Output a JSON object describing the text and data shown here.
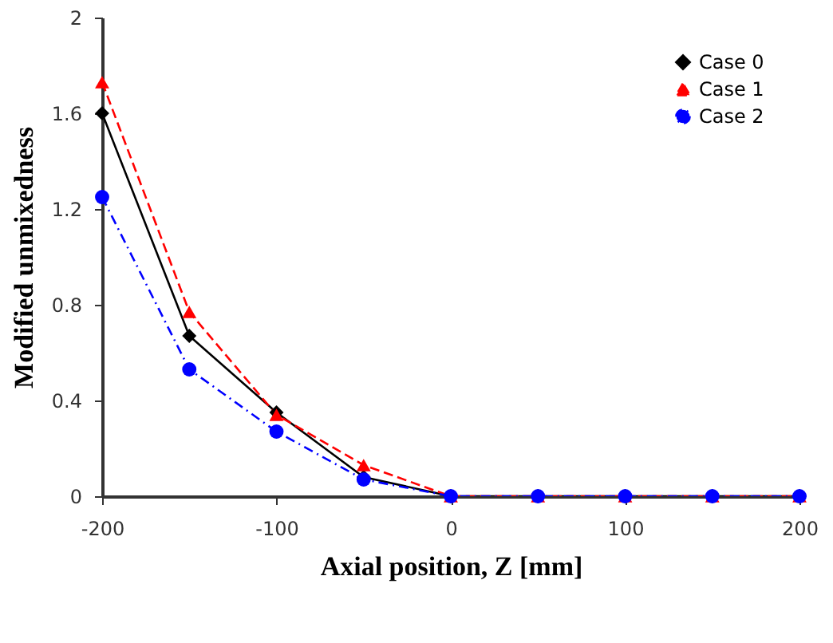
{
  "chart_data": {
    "type": "line",
    "xlabel": "Axial position, Z [mm]",
    "ylabel": "Modified unmixedness",
    "x": [
      -200,
      -150,
      -100,
      -50,
      0,
      50,
      100,
      150,
      200
    ],
    "series": [
      {
        "name": "Case 0",
        "color": "#000000",
        "marker": "diamond",
        "line_style": "solid",
        "values": [
          1.6,
          0.67,
          0.35,
          0.08,
          0,
          0,
          0,
          0,
          0
        ]
      },
      {
        "name": "Case 1",
        "color": "#ff0000",
        "marker": "triangle",
        "line_style": "dashed",
        "values": [
          1.73,
          0.77,
          0.34,
          0.13,
          0,
          0,
          0,
          0,
          0
        ]
      },
      {
        "name": "Case 2",
        "color": "#0000ff",
        "marker": "circle",
        "line_style": "dotted",
        "values": [
          1.25,
          0.53,
          0.27,
          0.07,
          0,
          0,
          0,
          0,
          0
        ]
      }
    ],
    "xlim": [
      -200,
      200
    ],
    "xticks": [
      -200,
      -100,
      0,
      100,
      200
    ],
    "ylim": [
      0,
      2
    ],
    "yticks": [
      0,
      0.4,
      0.8,
      1.2,
      1.6,
      2
    ],
    "grid": false,
    "legend": "top right"
  }
}
